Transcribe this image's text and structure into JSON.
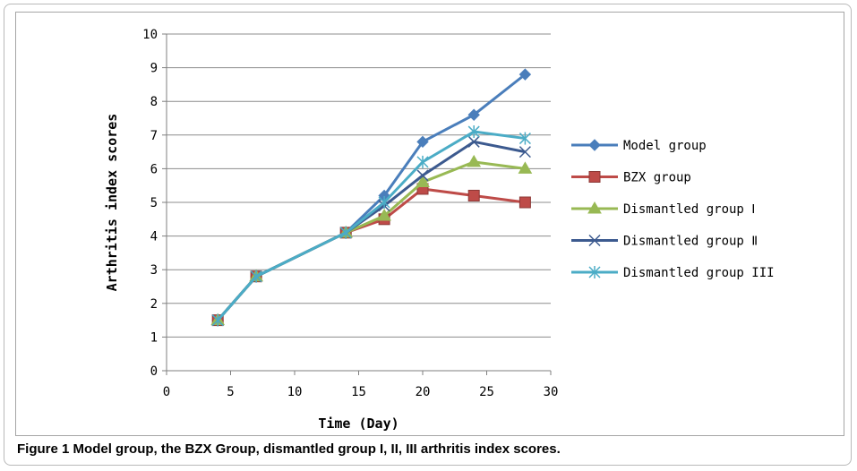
{
  "chart_data": {
    "type": "line",
    "xlabel": "Time (Day)",
    "ylabel": "Arthritis index scores",
    "xlim": [
      0,
      30
    ],
    "ylim": [
      0,
      10
    ],
    "xticks": [
      0,
      5,
      10,
      15,
      20,
      25,
      30
    ],
    "yticks": [
      0,
      1,
      2,
      3,
      4,
      5,
      6,
      7,
      8,
      9,
      10
    ],
    "grid": "horizontal",
    "legend_position": "right",
    "x": [
      4,
      7,
      14,
      17,
      20,
      24,
      28
    ],
    "series": [
      {
        "name": "Model group",
        "values": [
          1.5,
          2.8,
          4.1,
          5.2,
          6.8,
          7.6,
          8.8
        ],
        "color": "#4a7ebb",
        "marker": "diamond"
      },
      {
        "name": "BZX group",
        "values": [
          1.5,
          2.8,
          4.1,
          4.5,
          5.4,
          5.2,
          5.0
        ],
        "color": "#be4b48",
        "marker": "square"
      },
      {
        "name": "Dismantled group Ⅰ",
        "values": [
          1.5,
          2.8,
          4.1,
          4.6,
          5.6,
          6.2,
          6.0
        ],
        "color": "#98b954",
        "marker": "triangle"
      },
      {
        "name": "Dismantled group Ⅱ",
        "values": [
          1.5,
          2.8,
          4.1,
          4.9,
          5.8,
          6.8,
          6.5
        ],
        "color": "#3c5a8f",
        "marker": "x"
      },
      {
        "name": "Dismantled group III",
        "values": [
          1.5,
          2.8,
          4.1,
          5.0,
          6.2,
          7.1,
          6.9
        ],
        "color": "#4bacc6",
        "marker": "star"
      }
    ]
  },
  "caption": {
    "label": "Figure 1",
    "text": "Model group, the BZX Group, dismantled group I, II, III arthritis index scores."
  }
}
